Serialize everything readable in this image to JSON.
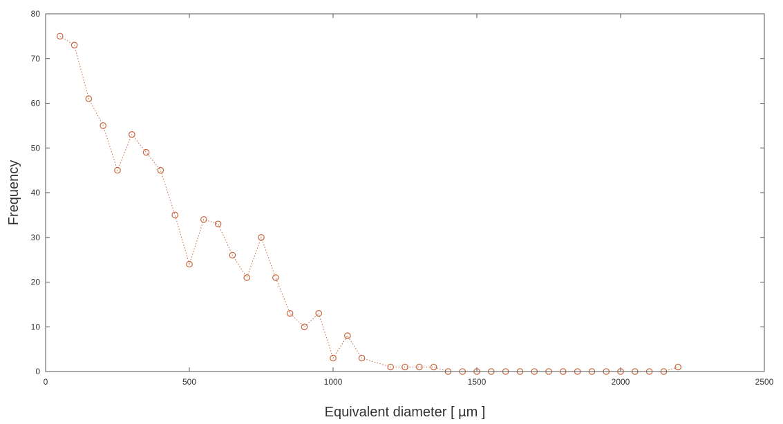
{
  "chart_data": {
    "type": "scatter",
    "xlabel": "Equivalent diameter   [ µm ]",
    "ylabel": "Frequency",
    "xlim": [
      0,
      2500
    ],
    "ylim": [
      0,
      80
    ],
    "xticks": [
      0,
      500,
      1000,
      1500,
      2000,
      2500
    ],
    "yticks": [
      0,
      10,
      20,
      30,
      40,
      50,
      60,
      70,
      80
    ],
    "grid": false,
    "line_style": "dotted",
    "marker": "circle",
    "color": "#c8643c",
    "series": [
      {
        "x": [
          50,
          100,
          150,
          200,
          250,
          300,
          350,
          400,
          450,
          500,
          550,
          600,
          650,
          700,
          750,
          800,
          850,
          900,
          950,
          1000,
          1050,
          1100,
          1200,
          1250,
          1300,
          1350,
          1400,
          1450,
          1500,
          1550,
          1600,
          1650,
          1700,
          1750,
          1800,
          1850,
          1900,
          1950,
          2000,
          2050,
          2100,
          2150,
          2200
        ],
        "y": [
          75,
          73,
          61,
          55,
          45,
          53,
          49,
          45,
          35,
          24,
          34,
          33,
          26,
          21,
          30,
          21,
          13,
          10,
          13,
          3,
          8,
          3,
          1,
          1,
          1,
          1,
          0,
          0,
          0,
          0,
          0,
          0,
          0,
          0,
          0,
          0,
          0,
          0,
          0,
          0,
          0,
          0,
          1
        ]
      }
    ]
  }
}
